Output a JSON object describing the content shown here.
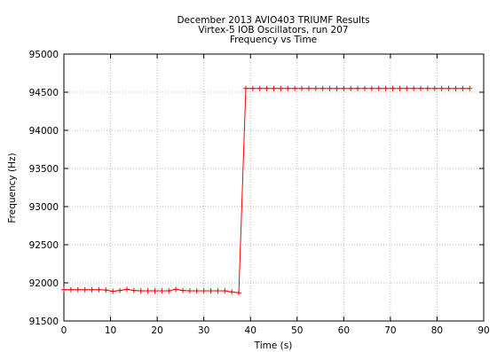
{
  "chart_data": {
    "type": "line",
    "title_lines": [
      "December 2013 AVIO403 TRIUMF Results",
      "Virtex-5 IOB Oscillators, run 207",
      "Frequency vs Time"
    ],
    "xlabel": "Time (s)",
    "ylabel": "Frequency (Hz)",
    "xlim": [
      0,
      90
    ],
    "ylim": [
      91500,
      95000
    ],
    "x_ticks": [
      0,
      10,
      20,
      30,
      40,
      50,
      60,
      70,
      80,
      90
    ],
    "y_ticks": [
      91500,
      92000,
      92500,
      93000,
      93500,
      94000,
      94500,
      95000
    ],
    "grid": true,
    "series": [
      {
        "color": "#ff0000",
        "marker": "plus",
        "x": [
          0,
          1.5,
          3,
          4.5,
          6,
          7.5,
          9,
          10.5,
          12,
          13.5,
          15,
          16.5,
          18,
          19.5,
          21,
          22.5,
          24,
          25.5,
          27,
          28.5,
          30,
          31.5,
          33,
          34.5,
          36,
          37.5,
          39,
          40.5,
          42,
          43.5,
          45,
          46.5,
          48,
          49.5,
          51,
          52.5,
          54,
          55.5,
          57,
          58.5,
          60,
          61.5,
          63,
          64.5,
          66,
          67.5,
          69,
          70.5,
          72,
          73.5,
          75,
          76.5,
          78,
          79.5,
          81,
          82.5,
          84,
          85.5,
          87
        ],
        "y": [
          91910,
          91910,
          91910,
          91910,
          91910,
          91910,
          91905,
          91890,
          91900,
          91915,
          91900,
          91895,
          91895,
          91895,
          91895,
          91895,
          91915,
          91900,
          91895,
          91895,
          91895,
          91895,
          91895,
          91895,
          91880,
          91870,
          94550,
          94550,
          94550,
          94550,
          94550,
          94550,
          94550,
          94550,
          94550,
          94550,
          94550,
          94550,
          94550,
          94550,
          94550,
          94550,
          94550,
          94550,
          94550,
          94550,
          94550,
          94550,
          94550,
          94550,
          94550,
          94550,
          94550,
          94550,
          94550,
          94550,
          94550,
          94550,
          94550
        ]
      }
    ]
  }
}
